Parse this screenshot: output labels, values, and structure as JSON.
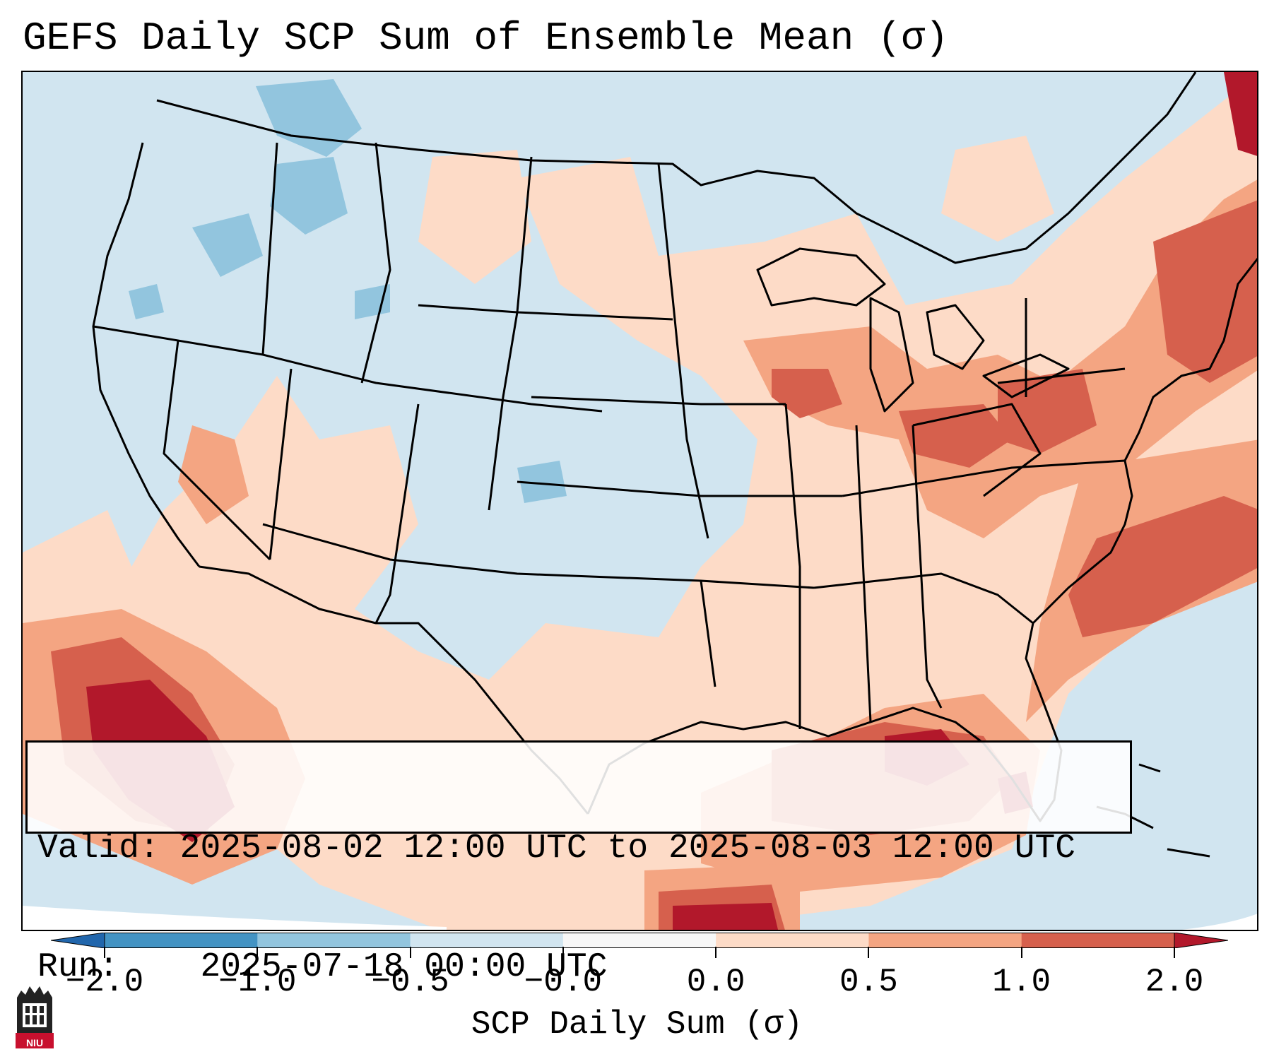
{
  "title": "GEFS Daily SCP Sum of Ensemble Mean (σ)",
  "info": {
    "valid_label": "Valid:",
    "valid_value": "2025-08-02 12:00 UTC to 2025-08-03 12:00 UTC",
    "run_label": "Run:",
    "run_value": "2025-07-18 00:00 UTC"
  },
  "colorbar": {
    "label": "SCP Daily Sum (σ)",
    "ticks": [
      "−2.0",
      "−1.0",
      "−0.5",
      "−0.0",
      "0.0",
      "0.5",
      "1.0",
      "2.0"
    ],
    "colors": [
      "#2166ac",
      "#4393c3",
      "#92c5de",
      "#d1e5f0",
      "#f7f7f7",
      "#fddbc7",
      "#f4a582",
      "#d6604d",
      "#b2182b"
    ]
  },
  "map_regions": {
    "positive_weak": [
      "Northern Plains",
      "Midwest",
      "Southwest",
      "Southeast"
    ],
    "positive_moderate": [
      "Great Lakes",
      "Ohio Valley",
      "Northeast",
      "Gulf of Mexico",
      "Western Atlantic"
    ],
    "positive_strong": [
      "Eastern Pacific off Mexico",
      "Northeastern Gulf of Mexico",
      "Pennsylvania"
    ],
    "negative_weak": [
      "Pacific Northwest",
      "Northern Rockies"
    ]
  },
  "logo": {
    "text": "NIU"
  }
}
